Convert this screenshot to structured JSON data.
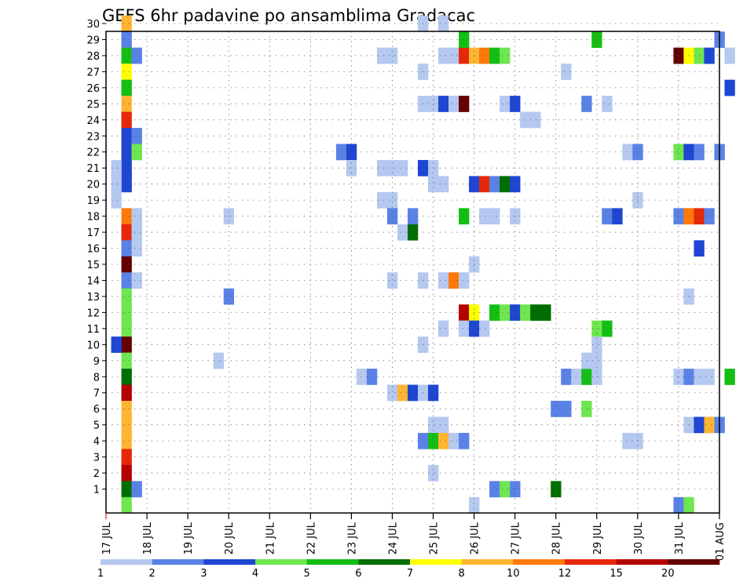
{
  "chart_data": {
    "type": "heatmap",
    "title": "GEFS 6hr padavine po ansamblima Gradacac",
    "members": [
      1,
      2,
      3,
      4,
      5,
      6,
      7,
      8,
      9,
      10,
      11,
      12,
      13,
      14,
      15,
      16,
      17,
      18,
      19,
      20,
      21,
      22,
      23,
      24,
      25,
      26,
      27,
      28,
      29,
      30
    ],
    "time_ticks": [
      "17 JUL",
      "18 JUL",
      "19 JUL",
      "20 JUL",
      "21 JUL",
      "22 JUL",
      "23 JUL",
      "24 JUL",
      "25 JUL",
      "26 JUL",
      "27 JUL",
      "28 JUL",
      "29 JUL",
      "30 JUL",
      "31 JUL",
      "01 AUG"
    ],
    "legend": {
      "thresholds": [
        "1",
        "2",
        "3",
        "4",
        "5",
        "6",
        "7",
        "8",
        "10",
        "12",
        "15",
        "20"
      ],
      "colors": [
        "#b4c8f0",
        "#5a82e6",
        "#1e46d2",
        "#6ee650",
        "#14be14",
        "#006e00",
        "#ffff00",
        "#ffb432",
        "#ff780a",
        "#e6280a",
        "#b40000",
        "#640000"
      ]
    },
    "cells": [
      [
        0.5,
        30,
        "#ffb432"
      ],
      [
        0.5,
        29,
        "#5a82e6"
      ],
      [
        0.5,
        28,
        "#14be14"
      ],
      [
        0.5,
        27,
        "#ffff00"
      ],
      [
        0.5,
        26,
        "#14be14"
      ],
      [
        0.5,
        25,
        "#ffb432"
      ],
      [
        0.5,
        24,
        "#e6280a"
      ],
      [
        0.5,
        23,
        "#1e46d2"
      ],
      [
        0.5,
        22,
        "#1e46d2"
      ],
      [
        0.5,
        21,
        "#1e46d2"
      ],
      [
        0.5,
        20,
        "#1e46d2"
      ],
      [
        0.5,
        18,
        "#ff780a"
      ],
      [
        0.5,
        17,
        "#e6280a"
      ],
      [
        0.5,
        16,
        "#5a82e6"
      ],
      [
        0.5,
        15,
        "#640000"
      ],
      [
        0.5,
        14,
        "#5a82e6"
      ],
      [
        0.5,
        13,
        "#6ee650"
      ],
      [
        0.5,
        12,
        "#6ee650"
      ],
      [
        0.5,
        11,
        "#6ee650"
      ],
      [
        0.5,
        10,
        "#640000"
      ],
      [
        0.5,
        9,
        "#6ee650"
      ],
      [
        0.5,
        8,
        "#006e00"
      ],
      [
        0.5,
        7,
        "#b40000"
      ],
      [
        0.5,
        6,
        "#ffb432"
      ],
      [
        0.5,
        5,
        "#ffb432"
      ],
      [
        0.5,
        4,
        "#ffb432"
      ],
      [
        0.5,
        3,
        "#e6280a"
      ],
      [
        0.5,
        2,
        "#b40000"
      ],
      [
        0.5,
        1,
        "#006e00"
      ],
      [
        0.5,
        0,
        "#6ee650"
      ],
      [
        0.25,
        21,
        "#b4c8f0"
      ],
      [
        0.25,
        20,
        "#b4c8f0"
      ],
      [
        0.25,
        19,
        "#b4c8f0"
      ],
      [
        0.25,
        10,
        "#1e46d2"
      ],
      [
        0.75,
        28,
        "#5a82e6"
      ],
      [
        0.75,
        23,
        "#5a82e6"
      ],
      [
        0.75,
        22,
        "#6ee650"
      ],
      [
        0.75,
        18,
        "#b4c8f0"
      ],
      [
        0.75,
        17,
        "#b4c8f0"
      ],
      [
        0.75,
        16,
        "#b4c8f0"
      ],
      [
        0.75,
        14,
        "#b4c8f0"
      ],
      [
        0.75,
        1,
        "#5a82e6"
      ],
      [
        2.75,
        9,
        "#b4c8f0"
      ],
      [
        3.0,
        18,
        "#b4c8f0"
      ],
      [
        3.0,
        13,
        "#5a82e6"
      ],
      [
        5.75,
        22,
        "#5a82e6"
      ],
      [
        6.0,
        22,
        "#1e46d2"
      ],
      [
        6.0,
        21,
        "#b4c8f0"
      ],
      [
        6.25,
        8,
        "#b4c8f0"
      ],
      [
        6.5,
        8,
        "#5a82e6"
      ],
      [
        6.75,
        28,
        "#b4c8f0"
      ],
      [
        7.0,
        28,
        "#b4c8f0"
      ],
      [
        6.75,
        21,
        "#b4c8f0"
      ],
      [
        7.0,
        21,
        "#b4c8f0"
      ],
      [
        7.25,
        21,
        "#b4c8f0"
      ],
      [
        6.75,
        19,
        "#b4c8f0"
      ],
      [
        7.0,
        19,
        "#b4c8f0"
      ],
      [
        7.0,
        18,
        "#5a82e6"
      ],
      [
        7.25,
        17,
        "#b4c8f0"
      ],
      [
        7.5,
        17,
        "#006e00"
      ],
      [
        7.5,
        18,
        "#5a82e6"
      ],
      [
        7.0,
        14,
        "#b4c8f0"
      ],
      [
        7.0,
        7,
        "#b4c8f0"
      ],
      [
        7.25,
        7,
        "#ffb432"
      ],
      [
        7.5,
        7,
        "#1e46d2"
      ],
      [
        7.75,
        7,
        "#b4c8f0"
      ],
      [
        8.0,
        7,
        "#1e46d2"
      ],
      [
        7.75,
        30,
        "#b4c8f0"
      ],
      [
        7.75,
        27,
        "#b4c8f0"
      ],
      [
        7.75,
        25,
        "#b4c8f0"
      ],
      [
        8.0,
        25,
        "#b4c8f0"
      ],
      [
        7.75,
        21,
        "#1e46d2"
      ],
      [
        8.0,
        21,
        "#b4c8f0"
      ],
      [
        8.0,
        20,
        "#b4c8f0"
      ],
      [
        8.25,
        20,
        "#b4c8f0"
      ],
      [
        7.75,
        14,
        "#b4c8f0"
      ],
      [
        7.75,
        10,
        "#b4c8f0"
      ],
      [
        8.0,
        2,
        "#b4c8f0"
      ],
      [
        8.0,
        5,
        "#b4c8f0"
      ],
      [
        8.25,
        5,
        "#b4c8f0"
      ],
      [
        7.75,
        4,
        "#5a82e6"
      ],
      [
        8.0,
        4,
        "#14be14"
      ],
      [
        8.25,
        4,
        "#ffb432"
      ],
      [
        8.5,
        4,
        "#b4c8f0"
      ],
      [
        8.75,
        4,
        "#5a82e6"
      ],
      [
        8.25,
        30,
        "#b4c8f0"
      ],
      [
        8.25,
        28,
        "#b4c8f0"
      ],
      [
        8.5,
        28,
        "#b4c8f0"
      ],
      [
        8.75,
        28,
        "#e6280a"
      ],
      [
        9.0,
        28,
        "#ffb432"
      ],
      [
        9.25,
        28,
        "#ff780a"
      ],
      [
        9.5,
        28,
        "#14be14"
      ],
      [
        9.75,
        28,
        "#6ee650"
      ],
      [
        8.75,
        29,
        "#14be14"
      ],
      [
        8.25,
        25,
        "#1e46d2"
      ],
      [
        8.5,
        25,
        "#b4c8f0"
      ],
      [
        8.75,
        25,
        "#640000"
      ],
      [
        9.75,
        25,
        "#b4c8f0"
      ],
      [
        10.0,
        25,
        "#1e46d2"
      ],
      [
        9.0,
        20,
        "#1e46d2"
      ],
      [
        9.25,
        20,
        "#e6280a"
      ],
      [
        9.5,
        20,
        "#5a82e6"
      ],
      [
        9.75,
        20,
        "#006e00"
      ],
      [
        10.0,
        20,
        "#1e46d2"
      ],
      [
        8.75,
        18,
        "#14be14"
      ],
      [
        9.25,
        18,
        "#b4c8f0"
      ],
      [
        9.5,
        18,
        "#b4c8f0"
      ],
      [
        10.0,
        18,
        "#b4c8f0"
      ],
      [
        8.25,
        14,
        "#b4c8f0"
      ],
      [
        8.5,
        14,
        "#ff780a"
      ],
      [
        8.75,
        14,
        "#b4c8f0"
      ],
      [
        9.0,
        15,
        "#b4c8f0"
      ],
      [
        8.75,
        12,
        "#b40000"
      ],
      [
        9.0,
        12,
        "#ffff00"
      ],
      [
        9.5,
        12,
        "#14be14"
      ],
      [
        9.75,
        12,
        "#6ee650"
      ],
      [
        10.0,
        12,
        "#1e46d2"
      ],
      [
        10.25,
        12,
        "#6ee650"
      ],
      [
        10.5,
        12,
        "#006e00"
      ],
      [
        10.75,
        12,
        "#006e00"
      ],
      [
        8.25,
        11,
        "#b4c8f0"
      ],
      [
        8.75,
        11,
        "#b4c8f0"
      ],
      [
        9.0,
        11,
        "#1e46d2"
      ],
      [
        9.25,
        11,
        "#b4c8f0"
      ],
      [
        9.0,
        0,
        "#b4c8f0"
      ],
      [
        9.5,
        1,
        "#5a82e6"
      ],
      [
        9.75,
        1,
        "#6ee650"
      ],
      [
        10.0,
        1,
        "#5a82e6"
      ],
      [
        11.0,
        1,
        "#006e00"
      ],
      [
        10.25,
        24,
        "#b4c8f0"
      ],
      [
        10.5,
        24,
        "#b4c8f0"
      ],
      [
        11.25,
        27,
        "#b4c8f0"
      ],
      [
        11.0,
        6,
        "#5a82e6"
      ],
      [
        11.25,
        6,
        "#5a82e6"
      ],
      [
        11.25,
        8,
        "#5a82e6"
      ],
      [
        11.5,
        8,
        "#b4c8f0"
      ],
      [
        11.75,
        8,
        "#14be14"
      ],
      [
        12.0,
        8,
        "#b4c8f0"
      ],
      [
        11.75,
        6,
        "#6ee650"
      ],
      [
        11.75,
        25,
        "#5a82e6"
      ],
      [
        12.0,
        29,
        "#14be14"
      ],
      [
        12.25,
        25,
        "#b4c8f0"
      ],
      [
        12.0,
        11,
        "#6ee650"
      ],
      [
        12.25,
        11,
        "#14be14"
      ],
      [
        12.0,
        10,
        "#b4c8f0"
      ],
      [
        11.75,
        9,
        "#b4c8f0"
      ],
      [
        12.0,
        9,
        "#b4c8f0"
      ],
      [
        12.25,
        18,
        "#5a82e6"
      ],
      [
        12.5,
        18,
        "#1e46d2"
      ],
      [
        12.75,
        22,
        "#b4c8f0"
      ],
      [
        13.0,
        22,
        "#5a82e6"
      ],
      [
        13.0,
        19,
        "#b4c8f0"
      ],
      [
        12.75,
        4,
        "#b4c8f0"
      ],
      [
        13.0,
        4,
        "#b4c8f0"
      ],
      [
        14.0,
        28,
        "#640000"
      ],
      [
        14.25,
        28,
        "#ffff00"
      ],
      [
        14.5,
        28,
        "#6ee650"
      ],
      [
        14.75,
        28,
        "#1e46d2"
      ],
      [
        15.25,
        28,
        "#b4c8f0"
      ],
      [
        15.0,
        29,
        "#5a82e6"
      ],
      [
        15.25,
        26,
        "#1e46d2"
      ],
      [
        14.0,
        22,
        "#6ee650"
      ],
      [
        14.25,
        22,
        "#1e46d2"
      ],
      [
        14.5,
        22,
        "#5a82e6"
      ],
      [
        15.0,
        22,
        "#5a82e6"
      ],
      [
        14.0,
        18,
        "#5a82e6"
      ],
      [
        14.25,
        18,
        "#ff780a"
      ],
      [
        14.5,
        18,
        "#e6280a"
      ],
      [
        14.75,
        18,
        "#5a82e6"
      ],
      [
        14.5,
        16,
        "#1e46d2"
      ],
      [
        14.25,
        13,
        "#b4c8f0"
      ],
      [
        14.0,
        8,
        "#b4c8f0"
      ],
      [
        14.25,
        8,
        "#5a82e6"
      ],
      [
        14.5,
        8,
        "#b4c8f0"
      ],
      [
        14.75,
        8,
        "#b4c8f0"
      ],
      [
        15.25,
        8,
        "#14be14"
      ],
      [
        14.25,
        5,
        "#b4c8f0"
      ],
      [
        14.5,
        5,
        "#1e46d2"
      ],
      [
        14.75,
        5,
        "#ffb432"
      ],
      [
        15.0,
        5,
        "#5a82e6"
      ],
      [
        14.0,
        0,
        "#5a82e6"
      ],
      [
        14.25,
        0,
        "#6ee650"
      ]
    ]
  }
}
